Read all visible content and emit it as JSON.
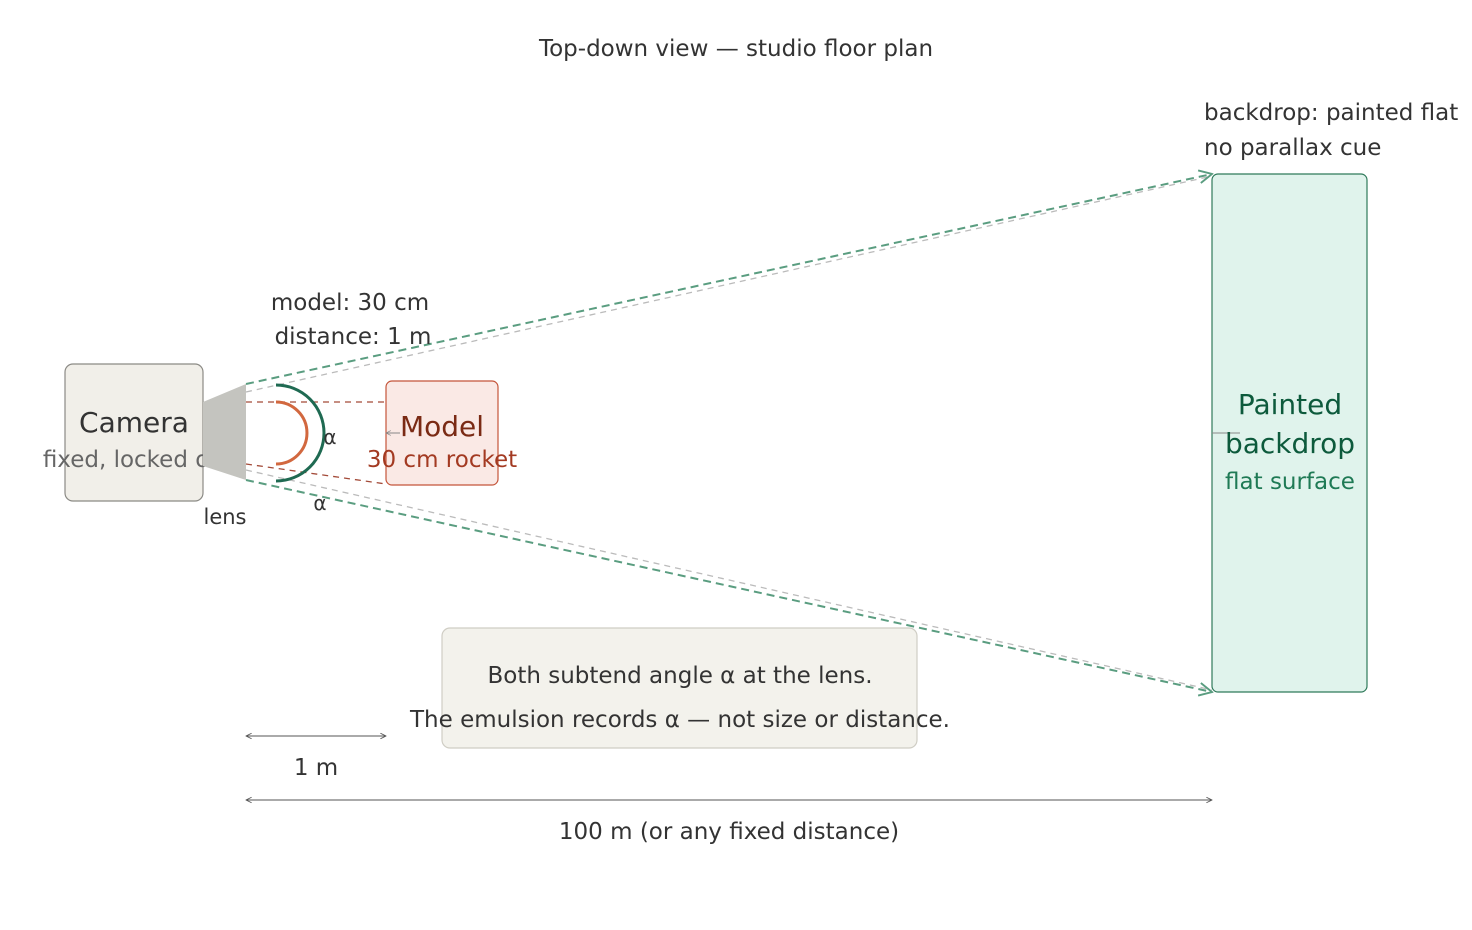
{
  "title": "Top-down view — studio floor plan",
  "camera": {
    "label": "Camera",
    "sublabel": "fixed, locked off"
  },
  "lens": {
    "label": "lens"
  },
  "model": {
    "label": "Model",
    "sublabel": "30 cm rocket",
    "spec_size": "model: 30 cm",
    "spec_distance": "distance: 1 m"
  },
  "backdrop": {
    "label_line1": "Painted",
    "label_line2": "backdrop",
    "sublabel": "flat surface",
    "note_line1": "backdrop: painted flat",
    "note_line2": "no parallax cue"
  },
  "angles": {
    "alpha_inner": "α",
    "alpha_outer": "α"
  },
  "caption": {
    "line1": "Both subtend angle α at the lens.",
    "line2": "The emulsion records α — not size or distance."
  },
  "dimensions": {
    "short": "1 m",
    "long": "100 m (or any fixed distance)"
  },
  "colors": {
    "camera_fill": "#f1efe9",
    "camera_stroke": "#8b8a85",
    "lens_fill": "#c4c4bf",
    "model_fill": "#fae9e5",
    "model_stroke": "#c4553a",
    "model_text": "#7a2a14",
    "model_subtext": "#a33a22",
    "backdrop_fill": "#e0f3ec",
    "backdrop_stroke": "#2f7a5a",
    "backdrop_text": "#0d5a3c",
    "backdrop_subtext": "#1f7a55",
    "green_ray": "#5a9d80",
    "red_ray": "#a34a38",
    "arc_green": "#1f6a52",
    "arc_orange": "#d2683f",
    "caption_fill": "#f3f2ec",
    "caption_stroke": "#cfcdc4",
    "text_dark": "#333333",
    "text_muted": "#666666"
  }
}
